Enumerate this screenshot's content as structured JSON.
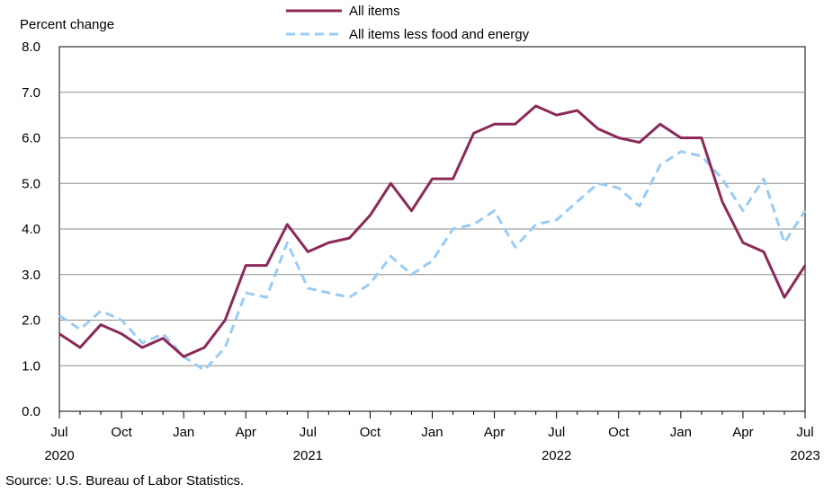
{
  "chart_data": {
    "type": "line",
    "ylabel": "Percent change",
    "ylim": [
      0,
      8
    ],
    "yticks": [
      "0.0",
      "1.0",
      "2.0",
      "3.0",
      "4.0",
      "5.0",
      "6.0",
      "7.0",
      "8.0"
    ],
    "grid": true,
    "legend_position": "top",
    "x": [
      "2020-07",
      "2020-08",
      "2020-09",
      "2020-10",
      "2020-11",
      "2020-12",
      "2021-01",
      "2021-02",
      "2021-03",
      "2021-04",
      "2021-05",
      "2021-06",
      "2021-07",
      "2021-08",
      "2021-09",
      "2021-10",
      "2021-11",
      "2021-12",
      "2022-01",
      "2022-02",
      "2022-03",
      "2022-04",
      "2022-05",
      "2022-06",
      "2022-07",
      "2022-08",
      "2022-09",
      "2022-10",
      "2022-11",
      "2022-12",
      "2023-01",
      "2023-02",
      "2023-03",
      "2023-04",
      "2023-05",
      "2023-06",
      "2023-07"
    ],
    "x_tick_labels": [
      {
        "month": "Jul",
        "year": "2020"
      },
      {
        "month": "Oct",
        "year": ""
      },
      {
        "month": "Jan",
        "year": ""
      },
      {
        "month": "Apr",
        "year": ""
      },
      {
        "month": "Jul",
        "year": "2021"
      },
      {
        "month": "Oct",
        "year": ""
      },
      {
        "month": "Jan",
        "year": ""
      },
      {
        "month": "Apr",
        "year": ""
      },
      {
        "month": "Jul",
        "year": "2022"
      },
      {
        "month": "Oct",
        "year": ""
      },
      {
        "month": "Jan",
        "year": ""
      },
      {
        "month": "Apr",
        "year": ""
      },
      {
        "month": "Jul",
        "year": "2023"
      }
    ],
    "series": [
      {
        "name": "All items",
        "color": "#8b2a58",
        "style": "solid",
        "values": [
          1.7,
          1.4,
          1.9,
          1.7,
          1.4,
          1.6,
          1.2,
          1.4,
          2.0,
          3.2,
          3.2,
          4.1,
          3.5,
          3.7,
          3.8,
          4.3,
          5.0,
          4.4,
          5.1,
          5.1,
          6.1,
          6.3,
          6.3,
          6.7,
          6.5,
          6.6,
          6.2,
          6.0,
          5.9,
          6.3,
          6.0,
          6.0,
          4.6,
          3.7,
          3.5,
          2.5,
          3.2
        ]
      },
      {
        "name": "All items less food and energy",
        "color": "#99ccf5",
        "style": "dashed",
        "values": [
          2.1,
          1.8,
          2.2,
          2.0,
          1.5,
          1.7,
          1.2,
          0.9,
          1.4,
          2.6,
          2.5,
          3.7,
          2.7,
          2.6,
          2.5,
          2.8,
          3.4,
          3.0,
          3.3,
          4.0,
          4.1,
          4.4,
          3.6,
          4.1,
          4.2,
          4.6,
          5.0,
          4.9,
          4.5,
          5.4,
          5.7,
          5.6,
          5.1,
          4.4,
          5.1,
          3.7,
          4.4
        ]
      }
    ]
  },
  "source": "Source: U.S. Bureau of Labor Statistics."
}
